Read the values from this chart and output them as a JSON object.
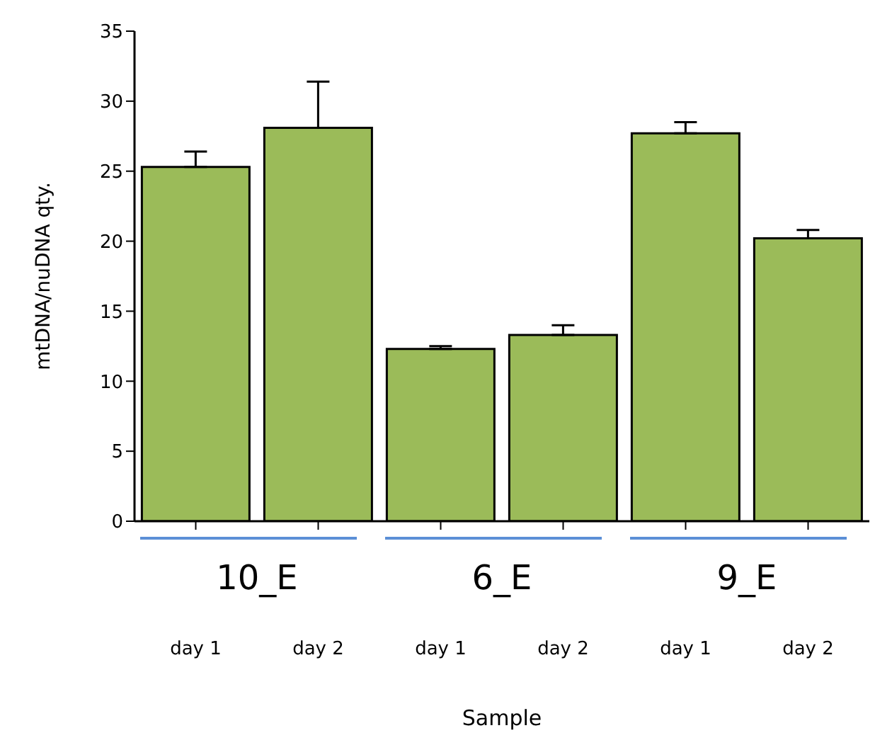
{
  "chart_data": {
    "type": "bar",
    "xlabel": "Sample",
    "ylabel": "mtDNA/nuDNA qty.",
    "categories": [
      "day 1",
      "day 2",
      "day 1",
      "day 2",
      "day 1",
      "day 2"
    ],
    "values": [
      25.3,
      28.1,
      12.3,
      13.3,
      27.7,
      20.2
    ],
    "errors": [
      [
        25.3,
        26.4
      ],
      [
        28.1,
        31.4
      ],
      [
        12.3,
        12.5
      ],
      [
        13.3,
        14.0
      ],
      [
        27.7,
        28.5
      ],
      [
        20.2,
        20.8
      ]
    ],
    "color": "#9bbb59",
    "ylim": [
      0,
      35
    ],
    "yticks": [
      0,
      5,
      10,
      15,
      20,
      25,
      30,
      35
    ],
    "annotations": [
      "10_E",
      "6_E",
      "9_E"
    ]
  }
}
